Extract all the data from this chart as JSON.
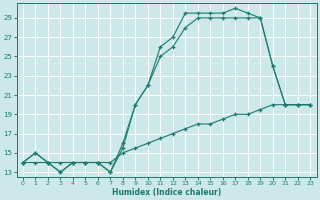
{
  "xlabel": "Humidex (Indice chaleur)",
  "bg_color": "#cce8e8",
  "grid_color": "#aacccc",
  "line_color": "#1a7a6e",
  "xlim": [
    -0.5,
    23.5
  ],
  "ylim": [
    12.5,
    30.5
  ],
  "yticks": [
    13,
    15,
    17,
    19,
    21,
    23,
    25,
    27,
    29
  ],
  "xticks": [
    0,
    1,
    2,
    3,
    4,
    5,
    6,
    7,
    8,
    9,
    10,
    11,
    12,
    13,
    14,
    15,
    16,
    17,
    18,
    19,
    20,
    21,
    22,
    23
  ],
  "line1_x": [
    0,
    1,
    2,
    3,
    4,
    5,
    6,
    7,
    8,
    9,
    10,
    11,
    12,
    13,
    14,
    15,
    16,
    17,
    18,
    19,
    20,
    21,
    22,
    23
  ],
  "line1_y": [
    14,
    15,
    14,
    13,
    14,
    14,
    14,
    13,
    15.5,
    20,
    22,
    25,
    26,
    28,
    29,
    29,
    29,
    29,
    29,
    29,
    24,
    20,
    20,
    20
  ],
  "line2_x": [
    0,
    1,
    2,
    3,
    4,
    5,
    6,
    7,
    8,
    9,
    10,
    11,
    12,
    13,
    14,
    15,
    16,
    17,
    18,
    19,
    20,
    21,
    22,
    23
  ],
  "line2_y": [
    14,
    15,
    14,
    13,
    14,
    14,
    14,
    13,
    16,
    20,
    22,
    26,
    27,
    29.5,
    29.5,
    29.5,
    29.5,
    30,
    29.5,
    29,
    24,
    20,
    20,
    20
  ],
  "line3_x": [
    0,
    1,
    2,
    3,
    4,
    5,
    6,
    7,
    8,
    9,
    10,
    11,
    12,
    13,
    14,
    15,
    16,
    17,
    18,
    19,
    20,
    21,
    22,
    23
  ],
  "line3_y": [
    14,
    14,
    14,
    14,
    14,
    14,
    14,
    14,
    15,
    15.5,
    16,
    16.5,
    17,
    17.5,
    18,
    18,
    18.5,
    19,
    19,
    19.5,
    20,
    20,
    20,
    20
  ]
}
